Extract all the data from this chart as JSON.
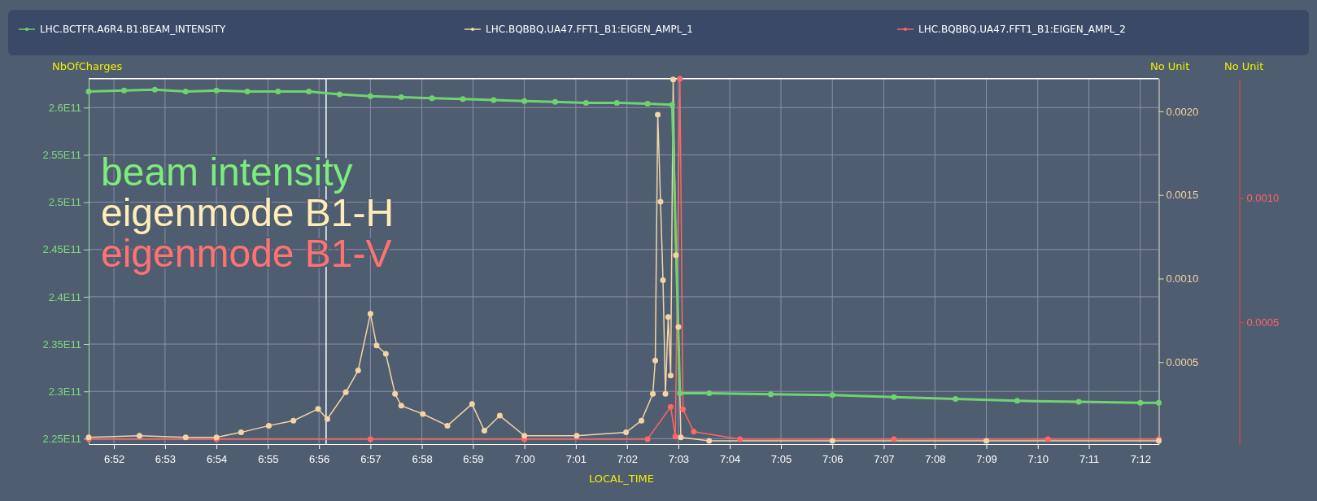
{
  "chart_data": {
    "type": "line",
    "xlabel": "LOCAL_TIME",
    "ylabel": "NbOfCharges",
    "y2label": "No Unit",
    "y3label": "No Unit",
    "annotations": [
      "beam intensity",
      "eigenmode B1-H",
      "eigenmode B1-V"
    ],
    "xlim": [
      6.8585,
      7.206
    ],
    "xticks": [
      {
        "value": 6.8667,
        "label": "6:52"
      },
      {
        "value": 6.8833,
        "label": "6:53"
      },
      {
        "value": 6.9,
        "label": "6:54"
      },
      {
        "value": 6.9167,
        "label": "6:55"
      },
      {
        "value": 6.9333,
        "label": "6:56"
      },
      {
        "value": 6.95,
        "label": "6:57"
      },
      {
        "value": 6.9667,
        "label": "6:58"
      },
      {
        "value": 6.9833,
        "label": "6:59"
      },
      {
        "value": 7.0,
        "label": "7:00"
      },
      {
        "value": 7.0167,
        "label": "7:01"
      },
      {
        "value": 7.0333,
        "label": "7:02"
      },
      {
        "value": 7.05,
        "label": "7:03"
      },
      {
        "value": 7.0667,
        "label": "7:04"
      },
      {
        "value": 7.0833,
        "label": "7:05"
      },
      {
        "value": 7.1,
        "label": "7:06"
      },
      {
        "value": 7.1167,
        "label": "7:07"
      },
      {
        "value": 7.1333,
        "label": "7:08"
      },
      {
        "value": 7.15,
        "label": "7:09"
      },
      {
        "value": 7.1667,
        "label": "7:10"
      },
      {
        "value": 7.1833,
        "label": "7:11"
      },
      {
        "value": 7.2,
        "label": "7:12"
      }
    ],
    "ylim": [
      224430000000.0,
      263050000000.0
    ],
    "yticks": [
      {
        "value": 225000000000.0,
        "label": "2.25E11"
      },
      {
        "value": 230000000000.0,
        "label": "2.3E11"
      },
      {
        "value": 235000000000.0,
        "label": "2.35E11"
      },
      {
        "value": 240000000000.0,
        "label": "2.4E11"
      },
      {
        "value": 245000000000.0,
        "label": "2.45E11"
      },
      {
        "value": 250000000000.0,
        "label": "2.5E11"
      },
      {
        "value": 255000000000.0,
        "label": "2.55E11"
      },
      {
        "value": 260000000000.0,
        "label": "2.6E11"
      }
    ],
    "y2lim": [
      1e-05,
      0.002195
    ],
    "y2ticks": [
      {
        "value": 0.0005,
        "label": "0.0005"
      },
      {
        "value": 0.001,
        "label": "0.0010"
      },
      {
        "value": 0.0015,
        "label": "0.0015"
      },
      {
        "value": 0.002,
        "label": "0.0020"
      }
    ],
    "y3lim": [
      1e-05,
      0.00148
    ],
    "y3ticks": [
      {
        "value": 0.0005,
        "label": "0.0005"
      },
      {
        "value": 0.001,
        "label": "0.0010"
      }
    ],
    "grid": true,
    "legend": "top",
    "marker": "circle",
    "line_style": "solid",
    "ref_lines": [
      {
        "axis": "x",
        "value": 6.9356,
        "color": "#ffffff"
      }
    ],
    "series": [
      {
        "name": "LHC.BCTFR.A6R4.B1:BEAM_INTENSITY",
        "color": "#6fd46f",
        "x": [
          6.8585,
          6.87,
          6.88,
          6.89,
          6.9,
          6.91,
          6.92,
          6.93,
          6.94,
          6.95,
          6.96,
          6.97,
          6.98,
          6.99,
          7.0,
          7.01,
          7.02,
          7.03,
          7.04,
          7.048,
          7.0505,
          7.06,
          7.08,
          7.1,
          7.12,
          7.14,
          7.16,
          7.18,
          7.2,
          7.206
        ],
        "values": [
          261700000000.0,
          261800000000.0,
          261900000000.0,
          261700000000.0,
          261800000000.0,
          261700000000.0,
          261700000000.0,
          261700000000.0,
          261400000000.0,
          261200000000.0,
          261100000000.0,
          261000000000.0,
          260900000000.0,
          260800000000.0,
          260700000000.0,
          260600000000.0,
          260500000000.0,
          260500000000.0,
          260400000000.0,
          260300000000.0,
          229800000000.0,
          229800000000.0,
          229700000000.0,
          229600000000.0,
          229400000000.0,
          229200000000.0,
          229000000000.0,
          228900000000.0,
          228800000000.0,
          228800000000.0
        ]
      },
      {
        "name": "LHC.BQBBQ.UA47.FFT1_B1:EIGEN_AMPL_1",
        "color": "#f3d5a5",
        "axis": "y2",
        "x": [
          6.8585,
          6.875,
          6.89,
          6.9,
          6.908,
          6.917,
          6.925,
          6.933,
          6.936,
          6.942,
          6.946,
          6.95,
          6.952,
          6.955,
          6.958,
          6.96,
          6.967,
          6.975,
          6.983,
          6.987,
          6.992,
          7.0,
          7.017,
          7.033,
          7.038,
          7.0417,
          7.0425,
          7.0433,
          7.0442,
          7.045,
          7.0458,
          7.0467,
          7.0475,
          7.0483,
          7.0492,
          7.05,
          7.0508,
          7.06,
          7.1,
          7.15,
          7.206
        ],
        "values": [
          5e-05,
          6e-05,
          5e-05,
          5e-05,
          8e-05,
          0.00012,
          0.00015,
          0.00022,
          0.00016,
          0.00032,
          0.00045,
          0.00079,
          0.0006,
          0.00055,
          0.00031,
          0.00024,
          0.00019,
          0.00012,
          0.00025,
          9e-05,
          0.00018,
          6e-05,
          6e-05,
          8e-05,
          0.00015,
          0.00031,
          0.00051,
          0.00198,
          0.00146,
          0.00099,
          0.00031,
          0.00077,
          0.00042,
          0.00219,
          0.00114,
          0.00071,
          5e-05,
          3e-05,
          3e-05,
          3e-05,
          3e-05
        ]
      },
      {
        "name": "LHC.BQBBQ.UA47.FFT1_B1:EIGEN_AMPL_2",
        "color": "#ff6666",
        "axis": "y3",
        "x": [
          6.8585,
          6.9,
          6.95,
          7.0,
          7.04,
          7.0475,
          7.049,
          7.0505,
          7.0515,
          7.055,
          7.07,
          7.12,
          7.17,
          7.206
        ],
        "values": [
          3e-05,
          3e-05,
          3e-05,
          3e-05,
          3e-05,
          0.00016,
          4e-05,
          0.00148,
          0.00015,
          6e-05,
          3e-05,
          3e-05,
          3e-05,
          3e-05
        ]
      }
    ]
  }
}
